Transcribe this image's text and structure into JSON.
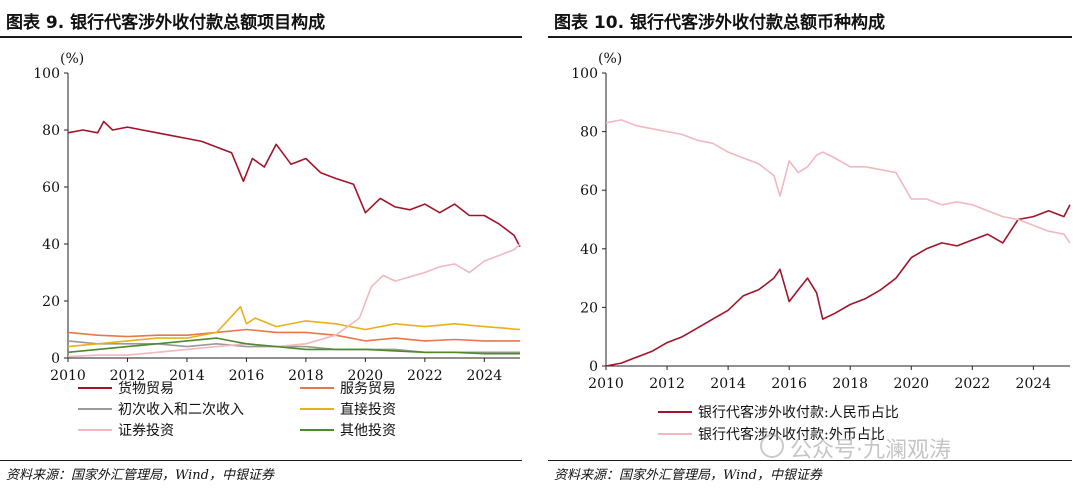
{
  "left": {
    "title": "图表 9. 银行代客涉外收付款总额项目构成",
    "source": "资料来源：国家外汇管理局，Wind，中银证券",
    "unit": "(%)"
  },
  "right": {
    "title": "图表 10. 银行代客涉外收付款总额币种构成",
    "source": "资料来源：国家外汇管理局，Wind，中银证券",
    "unit": "(%)"
  },
  "watermark": "公众号·九澜观涛",
  "chart_data": [
    {
      "type": "line",
      "ylim": [
        0,
        100
      ],
      "yticks": [
        "0",
        "20",
        "40",
        "60",
        "80",
        "100"
      ],
      "xlim": [
        2010,
        2025.2
      ],
      "xticks": [
        "2010",
        "2012",
        "2014",
        "2016",
        "2018",
        "2020",
        "2022",
        "2024"
      ],
      "legend_position": "bottom",
      "series": [
        {
          "name": "货物贸易",
          "color": "#a3142a",
          "x": [
            2010,
            2010.5,
            2011,
            2011.2,
            2011.5,
            2012,
            2012.5,
            2013,
            2013.5,
            2014,
            2014.5,
            2015,
            2015.5,
            2015.9,
            2016.2,
            2016.6,
            2017,
            2017.5,
            2018,
            2018.5,
            2019,
            2019.6,
            2020,
            2020.5,
            2021,
            2021.5,
            2022,
            2022.5,
            2023,
            2023.5,
            2024,
            2024.5,
            2025,
            2025.2
          ],
          "values": [
            79,
            80,
            79,
            83,
            80,
            81,
            80,
            79,
            78,
            77,
            76,
            74,
            72,
            62,
            70,
            67,
            75,
            68,
            70,
            65,
            63,
            61,
            51,
            56,
            53,
            52,
            54,
            51,
            54,
            50,
            50,
            47,
            43,
            39
          ]
        },
        {
          "name": "服务贸易",
          "color": "#e8774a",
          "x": [
            2010,
            2011,
            2012,
            2013,
            2014,
            2015,
            2016,
            2017,
            2018,
            2019,
            2020,
            2021,
            2022,
            2023,
            2024,
            2025.2
          ],
          "values": [
            9,
            8,
            7.5,
            8,
            8,
            9,
            10,
            9,
            9,
            8,
            6,
            7,
            6,
            6.5,
            6,
            6
          ]
        },
        {
          "name": "初次收入和二次收入",
          "color": "#9a9a9a",
          "x": [
            2010,
            2011,
            2012,
            2013,
            2014,
            2015,
            2016,
            2017,
            2018,
            2019,
            2020,
            2021,
            2022,
            2023,
            2024,
            2025.2
          ],
          "values": [
            6,
            5,
            5,
            5,
            4,
            5,
            4,
            4,
            4,
            3,
            3,
            3,
            2,
            2,
            2,
            2
          ]
        },
        {
          "name": "直接投资",
          "color": "#e8b01a",
          "x": [
            2010,
            2011,
            2012,
            2013,
            2014,
            2015,
            2015.8,
            2016,
            2016.3,
            2017,
            2018,
            2019,
            2020,
            2021,
            2022,
            2023,
            2024,
            2025.2
          ],
          "values": [
            4,
            5,
            6,
            7,
            7,
            9,
            18,
            12,
            14,
            11,
            13,
            12,
            10,
            12,
            11,
            12,
            11,
            10
          ]
        },
        {
          "name": "证券投资",
          "color": "#f2b8bf",
          "x": [
            2010,
            2011,
            2012,
            2013,
            2014,
            2015,
            2016,
            2017,
            2018,
            2019,
            2019.8,
            2020.2,
            2020.6,
            2021,
            2022,
            2022.5,
            2023,
            2023.5,
            2024,
            2024.5,
            2025,
            2025.2
          ],
          "values": [
            0.5,
            1,
            1,
            2,
            3,
            4,
            5,
            4,
            5,
            8,
            14,
            25,
            29,
            27,
            30,
            32,
            33,
            30,
            34,
            36,
            38,
            40
          ]
        },
        {
          "name": "其他投资",
          "color": "#4c8b2b",
          "x": [
            2010,
            2011,
            2012,
            2013,
            2014,
            2015,
            2016,
            2017,
            2018,
            2019,
            2020,
            2021,
            2022,
            2023,
            2024,
            2025.2
          ],
          "values": [
            2,
            3,
            4,
            5,
            6,
            7,
            5,
            4,
            3,
            3,
            3,
            2.5,
            2,
            2,
            1.5,
            1.5
          ]
        }
      ]
    },
    {
      "type": "line",
      "ylim": [
        0,
        100
      ],
      "yticks": [
        "0",
        "20",
        "40",
        "60",
        "80",
        "100"
      ],
      "xlim": [
        2010,
        2025.2
      ],
      "xticks": [
        "2010",
        "2012",
        "2014",
        "2016",
        "2018",
        "2020",
        "2022",
        "2024"
      ],
      "legend_position": "bottom",
      "series": [
        {
          "name": "银行代客涉外收付款:人民币占比",
          "color": "#a3142a",
          "x": [
            2010,
            2010.5,
            2011,
            2011.5,
            2012,
            2012.5,
            2013,
            2013.5,
            2014,
            2014.5,
            2015,
            2015.5,
            2015.7,
            2016,
            2016.3,
            2016.6,
            2016.9,
            2017.1,
            2017.5,
            2018,
            2018.5,
            2019,
            2019.5,
            2020,
            2020.5,
            2021,
            2021.5,
            2022,
            2022.5,
            2023,
            2023.5,
            2024,
            2024.5,
            2025,
            2025.2
          ],
          "values": [
            0,
            1,
            3,
            5,
            8,
            10,
            13,
            16,
            19,
            24,
            26,
            30,
            33,
            22,
            26,
            30,
            25,
            16,
            18,
            21,
            23,
            26,
            30,
            37,
            40,
            42,
            41,
            43,
            45,
            42,
            50,
            51,
            53,
            51,
            55
          ]
        },
        {
          "name": "银行代客涉外收付款:外币占比",
          "color": "#f2b8bf",
          "x": [
            2010,
            2010.5,
            2011,
            2011.5,
            2012,
            2012.5,
            2013,
            2013.5,
            2014,
            2014.5,
            2015,
            2015.5,
            2015.7,
            2016,
            2016.3,
            2016.6,
            2016.9,
            2017.1,
            2017.5,
            2018,
            2018.5,
            2019,
            2019.5,
            2020,
            2020.5,
            2021,
            2021.5,
            2022,
            2022.5,
            2023,
            2023.5,
            2024,
            2024.5,
            2025,
            2025.2
          ],
          "values": [
            83,
            84,
            82,
            81,
            80,
            79,
            77,
            76,
            73,
            71,
            69,
            65,
            58,
            70,
            66,
            68,
            72,
            73,
            71,
            68,
            68,
            67,
            66,
            57,
            57,
            55,
            56,
            55,
            53,
            51,
            50,
            48,
            46,
            45,
            42
          ]
        }
      ]
    }
  ]
}
